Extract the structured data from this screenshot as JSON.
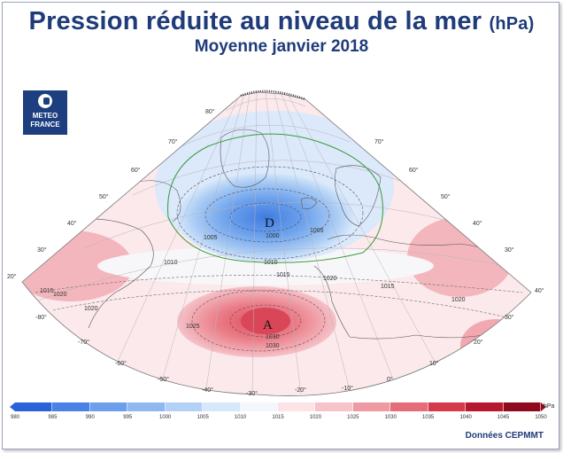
{
  "header": {
    "title": "Pression réduite au niveau de la mer",
    "unit": "(hPa)",
    "subtitle": "Moyenne janvier 2018"
  },
  "logo": {
    "line1": "METEO",
    "line2": "FRANCE"
  },
  "centers": [
    {
      "label": "D",
      "type": "low",
      "value": "1000"
    },
    {
      "label": "A",
      "type": "high",
      "value": "1030"
    }
  ],
  "isobar_labels": [
    "1010",
    "1015",
    "1015",
    "1020",
    "1020",
    "1025",
    "1005",
    "1005",
    "1030",
    "1010",
    "1015",
    "1020",
    "1020"
  ],
  "longitude_labels": [
    "-30°",
    "-20°",
    "-10°",
    "0°",
    "10°",
    "20°",
    "30°",
    "-40°",
    "-50°",
    "-60°",
    "-70°",
    "-80°",
    "40°"
  ],
  "latitude_labels": [
    "80°",
    "70°",
    "60°",
    "50°",
    "40°",
    "30°",
    "20°",
    "70°",
    "60°",
    "50°",
    "40°",
    "30°"
  ],
  "legend": {
    "unit": "hPa",
    "ticks": [
      "980",
      "985",
      "990",
      "995",
      "1000",
      "1005",
      "1010",
      "1015",
      "1020",
      "1025",
      "1030",
      "1035",
      "1040",
      "1045",
      "1050"
    ],
    "colors": [
      "#2a63d9",
      "#4b82e6",
      "#6c9eec",
      "#8fb8f1",
      "#b3d1f6",
      "#d7e8fb",
      "#f3f6fb",
      "#fbe3e6",
      "#f6c3c9",
      "#ef9aa3",
      "#e46d79",
      "#d43a4a",
      "#b8182d",
      "#8f0a1c"
    ]
  },
  "credit": "Données CEPMMT",
  "colors": {
    "title": "#1f3b7a",
    "low": "#4f8be5",
    "high": "#e56873"
  }
}
